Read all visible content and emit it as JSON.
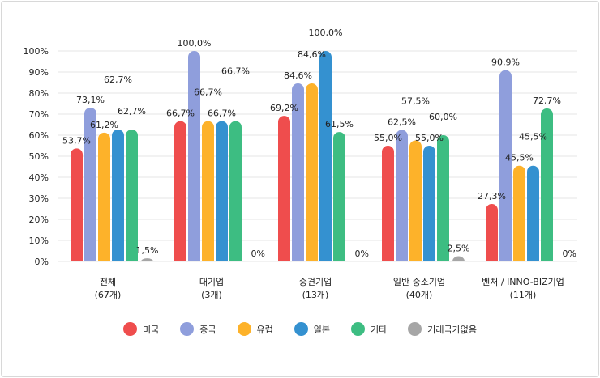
{
  "chart_data": {
    "type": "bar",
    "categories": [
      [
        "전체",
        "(67개)"
      ],
      [
        "대기업",
        "(3개)"
      ],
      [
        "중견기업",
        "(13개)"
      ],
      [
        "일반 중소기업",
        "(40개)"
      ],
      [
        "벤처 / INNO-BIZ기업",
        "(11개)"
      ]
    ],
    "series": [
      {
        "name": "미국",
        "color": "#ef4d4d",
        "values": [
          53.7,
          66.7,
          69.2,
          55.0,
          27.3
        ],
        "labels": [
          "53,7%",
          "66,7%",
          "69,2%",
          "55,0%",
          "27,3%"
        ]
      },
      {
        "name": "중국",
        "color": "#8f9edc",
        "values": [
          73.1,
          100.0,
          84.6,
          62.5,
          90.9
        ],
        "labels": [
          "73,1%",
          "100,0%",
          "84,6%",
          "62,5%",
          "90,9%"
        ]
      },
      {
        "name": "유럽",
        "color": "#fdb22a",
        "values": [
          61.2,
          66.7,
          84.6,
          57.5,
          45.5
        ],
        "labels": [
          "61,2%",
          "66,7%",
          "84,6%",
          "57,5%",
          "45,5%"
        ]
      },
      {
        "name": "일본",
        "color": "#3491d0",
        "values": [
          62.7,
          66.7,
          100.0,
          55.0,
          45.5
        ],
        "labels": [
          "62,7%",
          "66,7%",
          "100,0%",
          "55,0%",
          "45,5%"
        ]
      },
      {
        "name": "기타",
        "color": "#3dbd82",
        "values": [
          62.7,
          66.7,
          61.5,
          60.0,
          72.7
        ],
        "labels": [
          "62,7%",
          "66,7%",
          "61,5%",
          "60,0%",
          "72,7%"
        ]
      },
      {
        "name": "거래국가없음",
        "color": "#a6a6a6",
        "values": [
          1.5,
          0,
          0,
          2.5,
          0
        ],
        "labels": [
          "1,5%",
          "0%",
          "0%",
          "2,5%",
          "0%"
        ]
      }
    ],
    "yticks": [
      "0%",
      "10%",
      "20%",
      "30%",
      "40%",
      "50%",
      "60%",
      "70%",
      "80%",
      "90%",
      "100%"
    ],
    "ylim": [
      0,
      100
    ],
    "grid": true,
    "legend": "bottom"
  }
}
